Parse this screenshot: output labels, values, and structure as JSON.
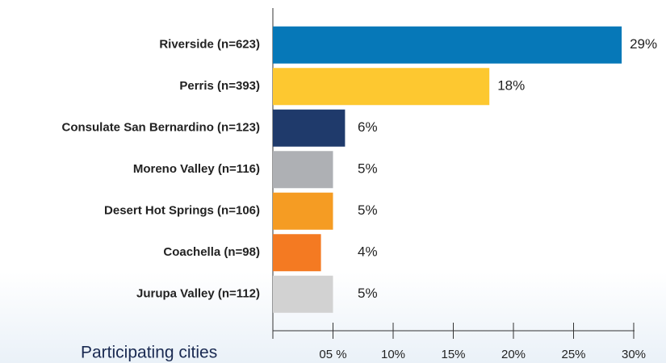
{
  "chart_data": {
    "type": "bar",
    "orientation": "horizontal",
    "y_label": "Participating cities",
    "categories": [
      "Riverside (n=623)",
      "Perris (n=393)",
      "Consulate San Bernardino (n=123)",
      "Moreno Valley (n=116)",
      "Desert Hot Springs (n=106)",
      "Coachella (n=98)",
      "Jurupa Valley (n=112)"
    ],
    "values": [
      29,
      18,
      6,
      5,
      5,
      4,
      5
    ],
    "value_labels": [
      "29%",
      "18%",
      "6%",
      "5%",
      "5%",
      "4%",
      "5%"
    ],
    "colors": [
      "#0678b8",
      "#fdc830",
      "#1f3a6b",
      "#aeb0b4",
      "#f59c23",
      "#f47a22",
      "#d2d2d2"
    ],
    "xlim": [
      0,
      30
    ],
    "xticks": [
      {
        "value": 5,
        "label": "05 %"
      },
      {
        "value": 10,
        "label": "10%"
      },
      {
        "value": 15,
        "label": "15%"
      },
      {
        "value": 20,
        "label": "20%"
      },
      {
        "value": 25,
        "label": "25%"
      },
      {
        "value": 30,
        "label": "30%"
      }
    ]
  }
}
